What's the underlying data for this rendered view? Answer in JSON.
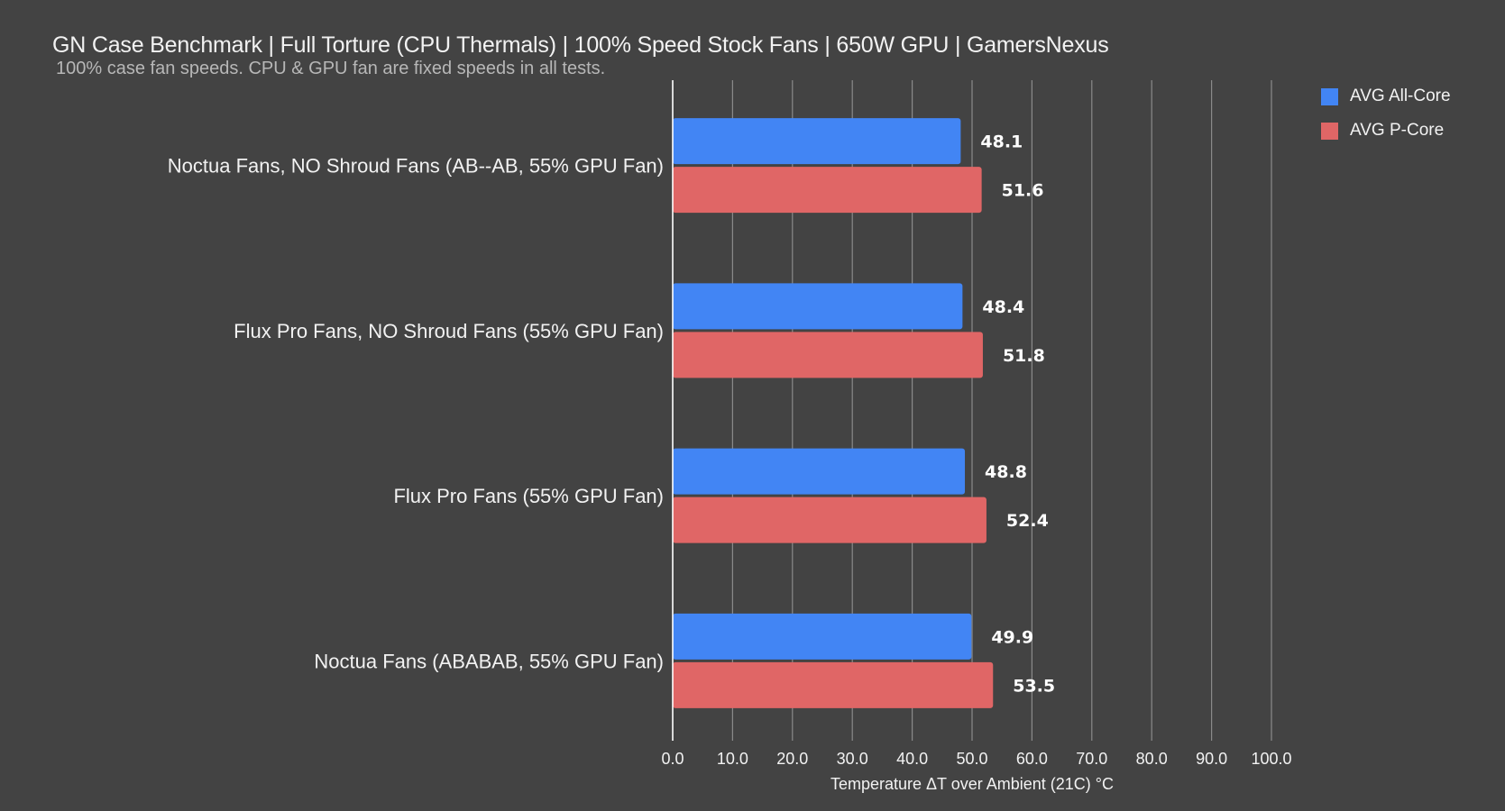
{
  "chart_data": {
    "type": "bar",
    "orientation": "horizontal",
    "title": "GN Case Benchmark | Full Torture (CPU Thermals) | 100% Speed Stock Fans | 650W GPU | GamersNexus",
    "subtitle": "100% case fan speeds. CPU & GPU fan are fixed speeds in all tests.",
    "xlabel": "Temperature ΔT over Ambient (21C) °C",
    "ylabel": "",
    "xlim": [
      0,
      100
    ],
    "x_ticks": [
      "0.0",
      "10.0",
      "20.0",
      "30.0",
      "40.0",
      "50.0",
      "60.0",
      "70.0",
      "80.0",
      "90.0",
      "100.0"
    ],
    "x_tick_values": [
      0,
      10,
      20,
      30,
      40,
      50,
      60,
      70,
      80,
      90,
      100
    ],
    "grid": true,
    "legend_position": "top-right",
    "categories": [
      "Noctua Fans, NO Shroud Fans (AB--AB, 55% GPU Fan)",
      "Flux Pro Fans, NO Shroud Fans (55% GPU Fan)",
      "Flux Pro Fans (55% GPU Fan)",
      "Noctua Fans (ABABAB, 55% GPU Fan)"
    ],
    "series": [
      {
        "name": "AVG All-Core",
        "color": "#4285f4",
        "values": [
          48.1,
          48.4,
          48.8,
          49.9
        ],
        "labels": [
          "48.1",
          "48.4",
          "48.8",
          "49.9"
        ]
      },
      {
        "name": "AVG P-Core",
        "color": "#e06666",
        "values": [
          51.6,
          51.8,
          52.4,
          53.5
        ],
        "labels": [
          "51.6",
          "51.8",
          "52.4",
          "53.5"
        ]
      }
    ]
  },
  "colors": {
    "background": "#434343",
    "gridline": "#8a8a8a",
    "axis_line": "#ffffff",
    "text": "#f2f2f2",
    "subtitle_text": "#b7b7b7"
  }
}
